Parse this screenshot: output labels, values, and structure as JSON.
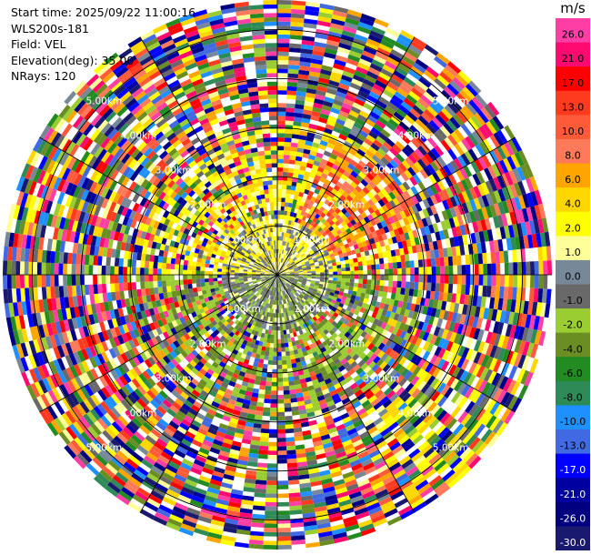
{
  "info": {
    "start_time": "Start time: 2025/09/22 11:00:16",
    "instrument": "WLS200s-181",
    "field": "Field: VEL",
    "elevation": "Elevation(deg): 35.00",
    "nrays": "NRays: 120"
  },
  "colorbar": {
    "unit": "m/s",
    "bins": [
      {
        "label": "26.0",
        "color": "#ff3ea5"
      },
      {
        "label": "21.0",
        "color": "#ff0a70"
      },
      {
        "label": "17.0",
        "color": "#ff0000"
      },
      {
        "label": "13.0",
        "color": "#ff3b1f"
      },
      {
        "label": "10.0",
        "color": "#ff5a3a"
      },
      {
        "label": "8.0",
        "color": "#ff7a5a"
      },
      {
        "label": "6.0",
        "color": "#ffa500"
      },
      {
        "label": "4.0",
        "color": "#ffd700"
      },
      {
        "label": "2.0",
        "color": "#ffff00"
      },
      {
        "label": "1.0",
        "color": "#ffff99"
      },
      {
        "label": "0.0",
        "color": "#778899"
      },
      {
        "label": "-1.0",
        "color": "#696969"
      },
      {
        "label": "-2.0",
        "color": "#9acd32"
      },
      {
        "label": "-4.0",
        "color": "#6b8e23"
      },
      {
        "label": "-6.0",
        "color": "#228b22"
      },
      {
        "label": "-8.0",
        "color": "#2e8b57"
      },
      {
        "label": "-10.0",
        "color": "#1e90ff"
      },
      {
        "label": "-13.0",
        "color": "#4169e1"
      },
      {
        "label": "-17.0",
        "color": "#0000ff"
      },
      {
        "label": "-21.0",
        "color": "#0000a0"
      },
      {
        "label": "-26.0",
        "color": "#000080"
      },
      {
        "label": "-30.0",
        "color": "#191970"
      }
    ]
  },
  "range_labels": [
    {
      "text": "1.00km"
    },
    {
      "text": "2.00km"
    },
    {
      "text": "3.00km"
    },
    {
      "text": "4.00km"
    },
    {
      "text": "5.00km"
    }
  ],
  "ppi": {
    "rays": 120,
    "max_range_km": 5.6,
    "ring_step_km": 1.0
  }
}
